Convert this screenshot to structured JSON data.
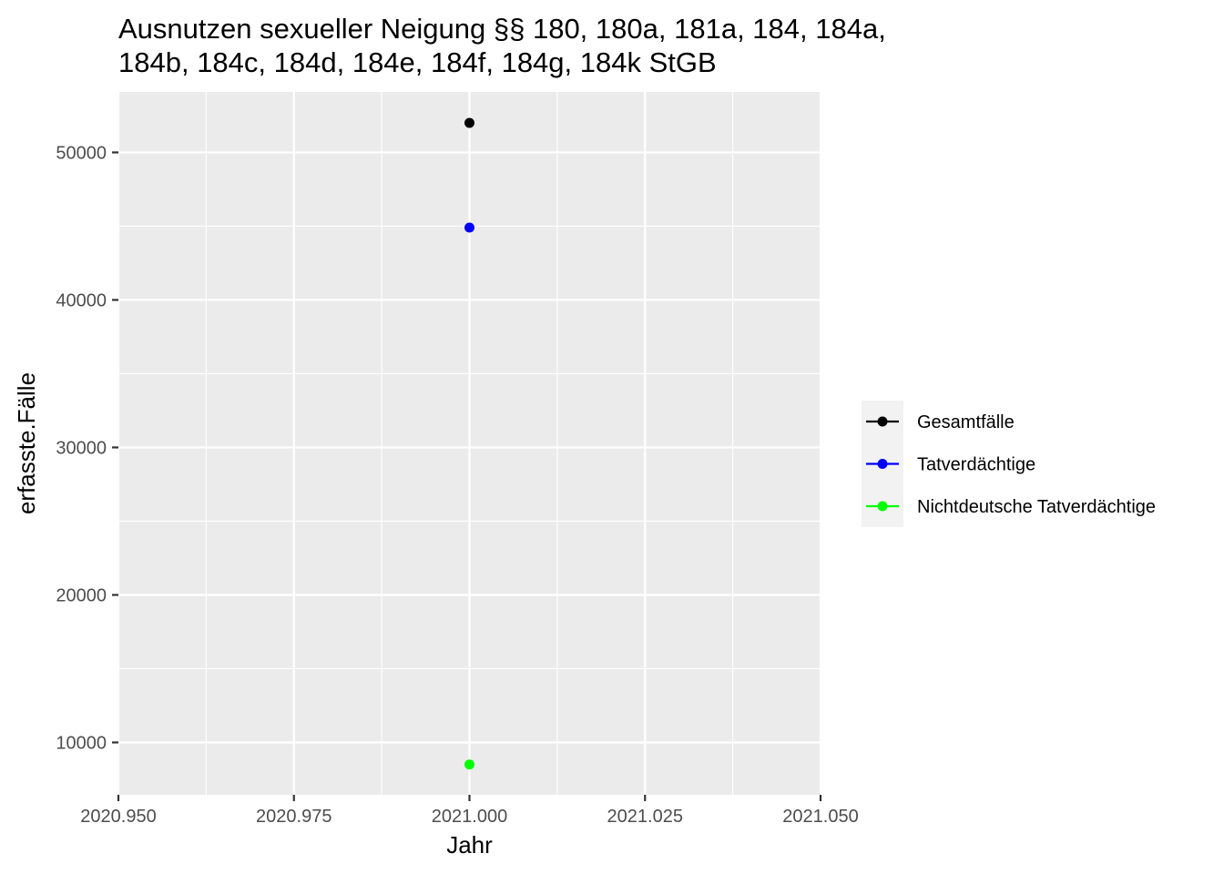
{
  "chart_data": {
    "type": "scatter",
    "title_lines": [
      "Ausnutzen sexueller Neigung §§ 180, 180a, 181a, 184, 184a,",
      "184b, 184c, 184d, 184e, 184f, 184g, 184k StGB"
    ],
    "xlabel": "Jahr",
    "ylabel": "erfasste.Fälle",
    "xlim": [
      2020.95,
      2021.05
    ],
    "ylim": [
      6450,
      54100
    ],
    "x_ticks": [
      2020.95,
      2020.975,
      2021.0,
      2021.025,
      2021.05
    ],
    "x_tick_labels": [
      "2020.950",
      "2020.975",
      "2021.000",
      "2021.025",
      "2021.050"
    ],
    "y_ticks": [
      10000,
      20000,
      30000,
      40000,
      50000
    ],
    "y_tick_labels": [
      "10000",
      "20000",
      "30000",
      "40000",
      "50000"
    ],
    "x_minor_breaks": [
      2020.9625,
      2020.9875,
      2021.0125,
      2021.0375
    ],
    "y_minor_breaks": [
      15000,
      25000,
      35000,
      45000
    ],
    "grid": true,
    "legend_position": "right",
    "series": [
      {
        "name": "Gesamtfälle",
        "color": "#000000",
        "x": [
          2021.0
        ],
        "values": [
          52000
        ]
      },
      {
        "name": "Tatverdächtige",
        "color": "#0000ff",
        "x": [
          2021.0
        ],
        "values": [
          44900
        ]
      },
      {
        "name": "Nichtdeutsche Tatverdächtige",
        "color": "#00ff00",
        "x": [
          2021.0
        ],
        "values": [
          8500
        ]
      }
    ]
  }
}
